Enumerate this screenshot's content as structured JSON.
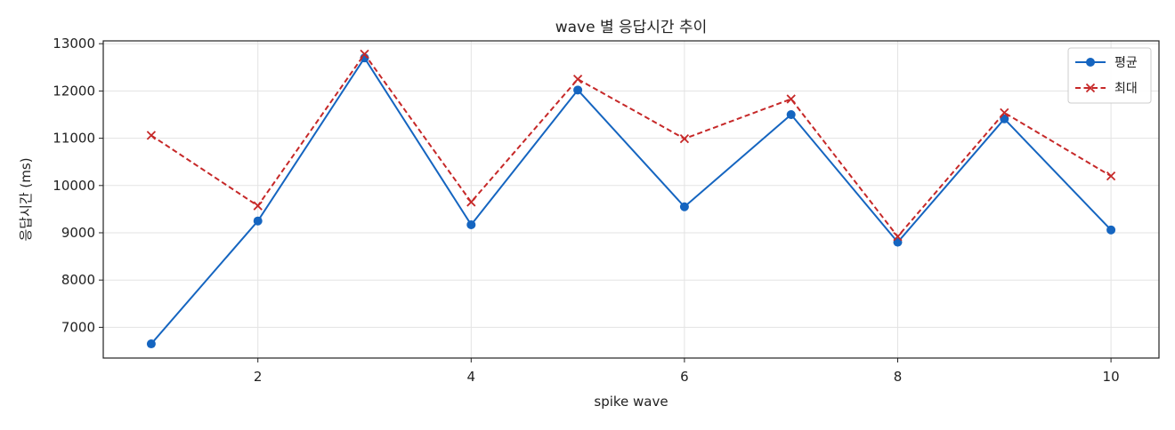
{
  "chart_data": {
    "type": "line",
    "title": "wave 별 응답시간 추이",
    "xlabel": "spike wave",
    "ylabel": "응답시간 (ms)",
    "x": [
      1,
      2,
      3,
      4,
      5,
      6,
      7,
      8,
      9,
      10
    ],
    "x_ticks": [
      2,
      4,
      6,
      8,
      10
    ],
    "y_ticks": [
      7000,
      8000,
      9000,
      10000,
      11000,
      12000,
      13000
    ],
    "xlim": [
      0.55,
      10.45
    ],
    "ylim": [
      6350,
      13060
    ],
    "grid": true,
    "legend_position": "top-right",
    "series": [
      {
        "name": "평균",
        "values": [
          6650,
          9250,
          12700,
          9170,
          12020,
          9550,
          11500,
          8800,
          11410,
          9060
        ],
        "color": "#1565c0",
        "line_style": "solid",
        "marker": "circle"
      },
      {
        "name": "최대",
        "values": [
          11060,
          9570,
          12780,
          9650,
          12250,
          10990,
          11830,
          8920,
          11540,
          10200
        ],
        "color": "#c62828",
        "line_style": "dashed",
        "marker": "x"
      }
    ]
  }
}
